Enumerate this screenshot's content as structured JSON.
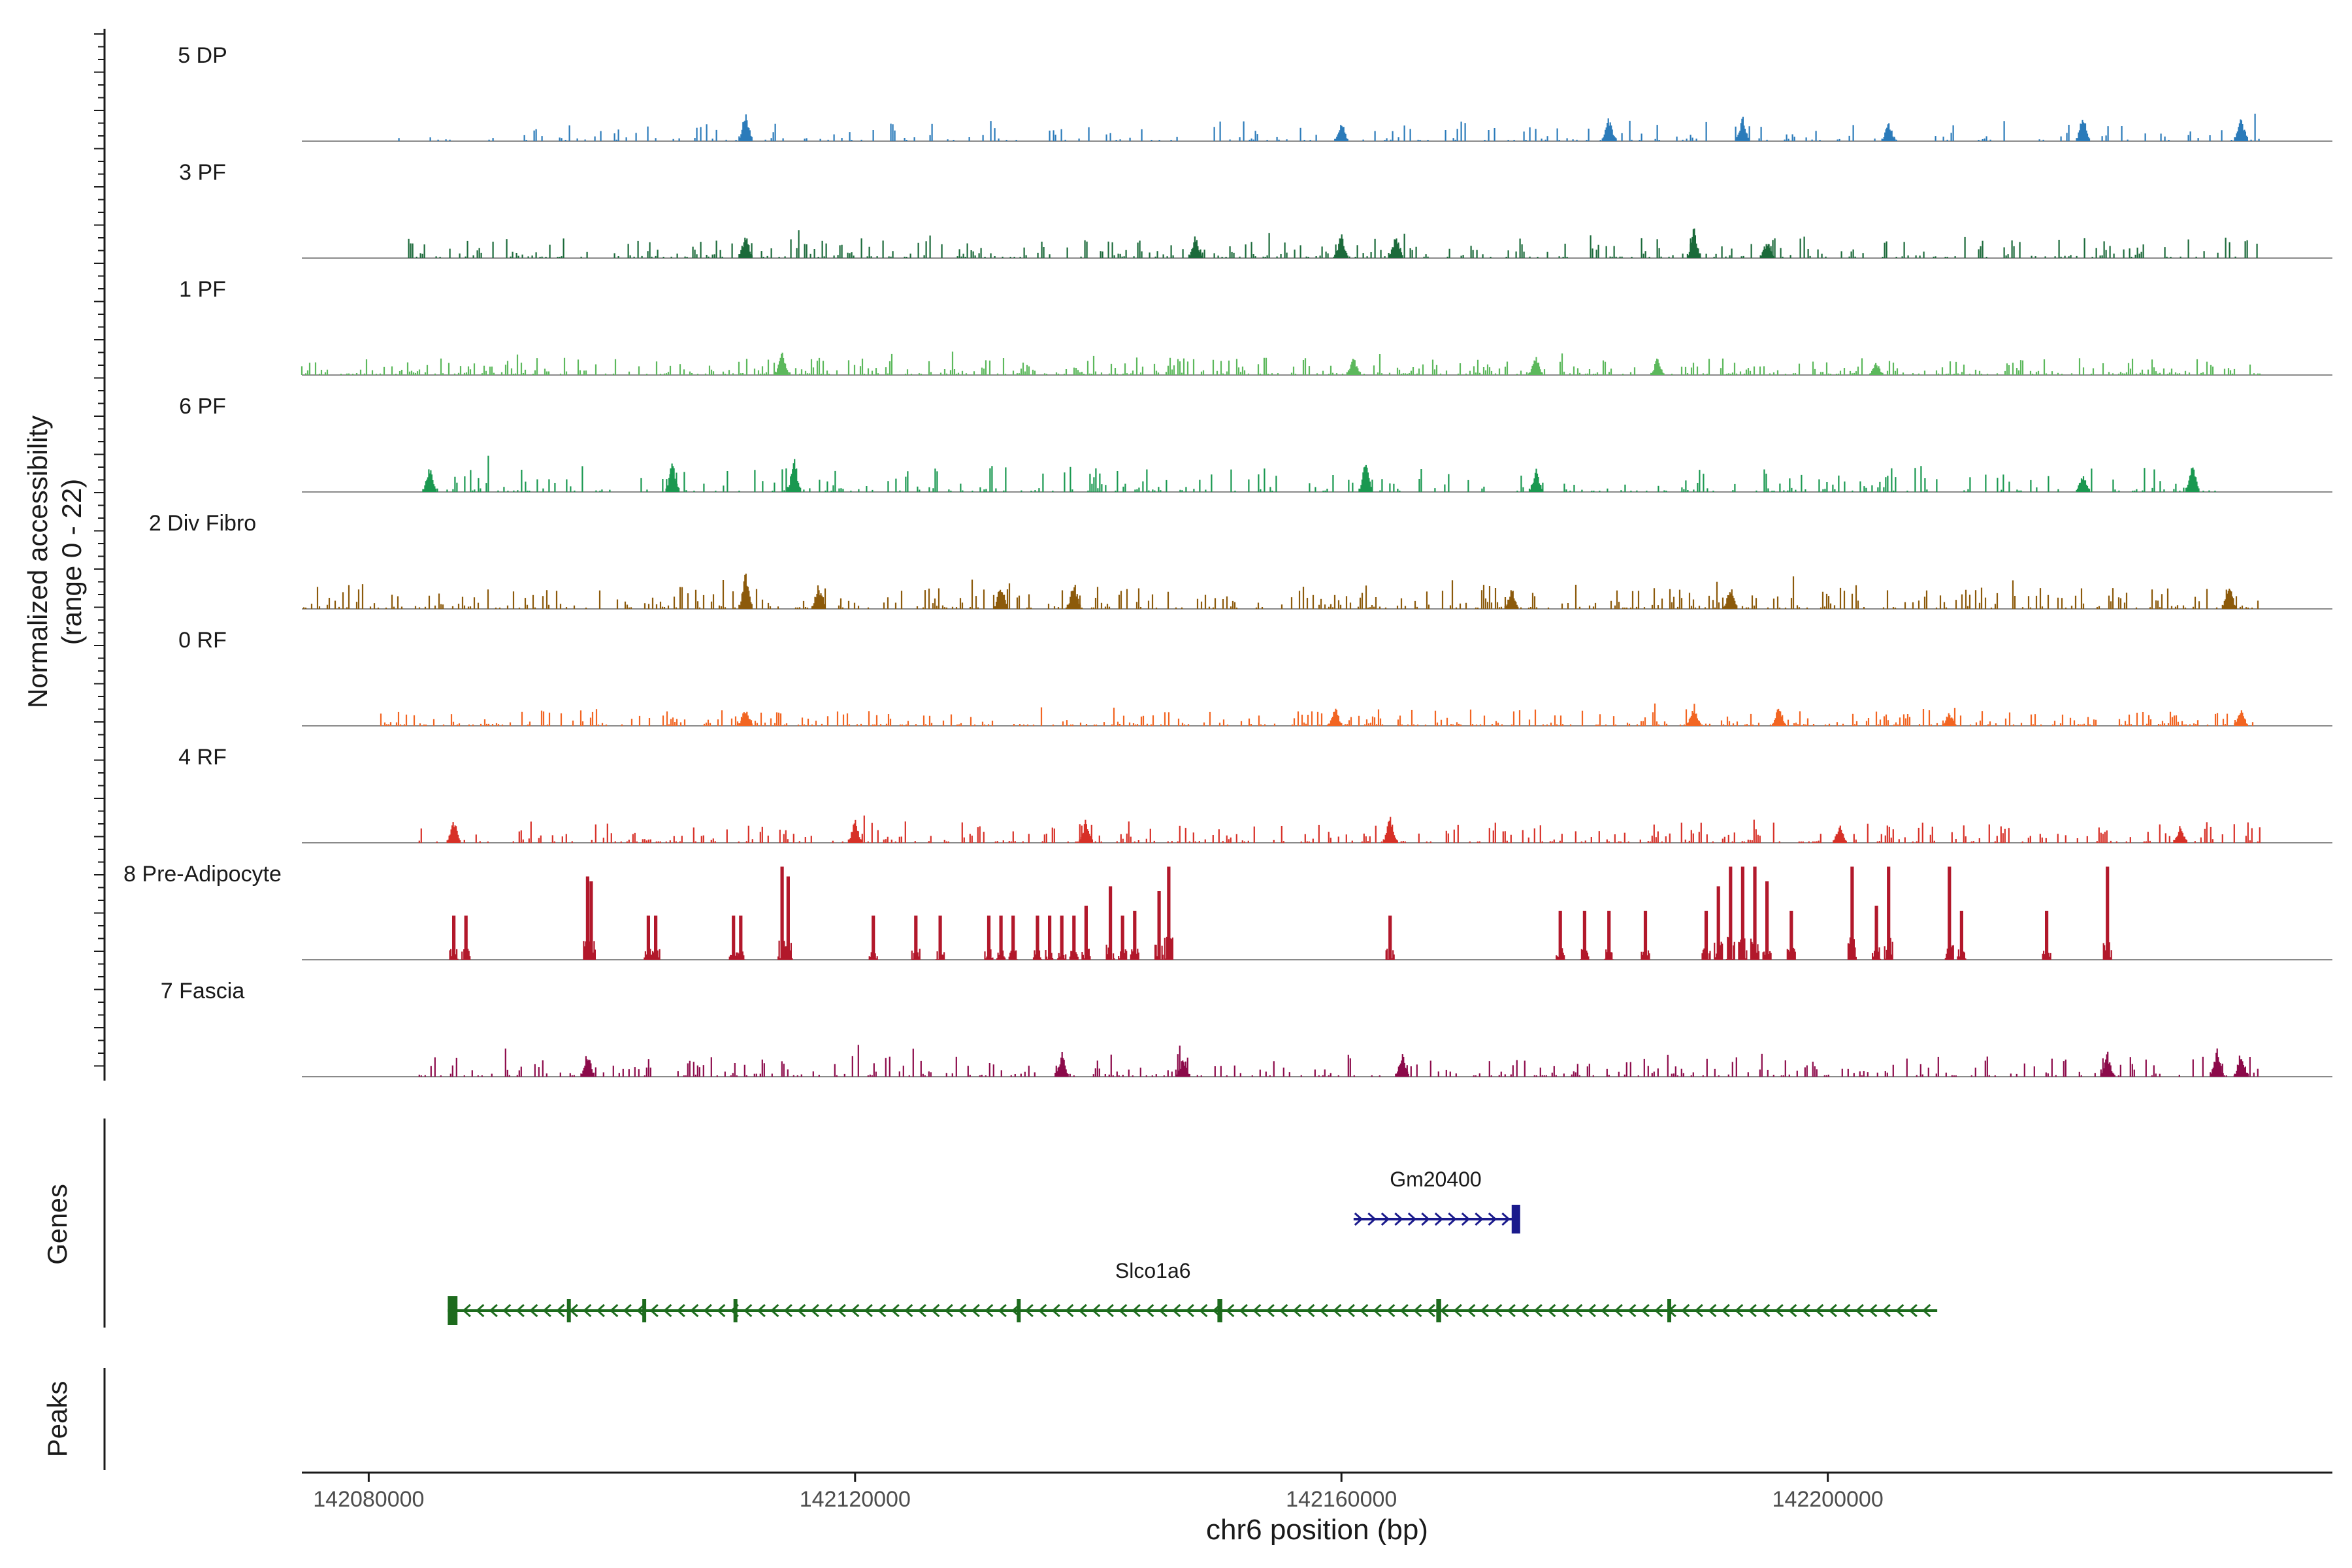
{
  "chart_data": {
    "type": "coverage",
    "y_axis_title_line1": "Normalized accessibility",
    "y_axis_title_line2": "(range 0 - 22)",
    "y_range": [
      0,
      22
    ],
    "x_title": "chr6 position (bp)",
    "x_range": [
      142074500,
      142241500
    ],
    "x_ticks": [
      {
        "value": 142080000,
        "label": "142080000"
      },
      {
        "value": 142120000,
        "label": "142120000"
      },
      {
        "value": 142160000,
        "label": "142160000"
      },
      {
        "value": 142200000,
        "label": "142200000"
      }
    ],
    "tracks": [
      {
        "name": "5 DP",
        "color": "#2b7bba",
        "height": 0.55,
        "density": 0.25,
        "start": 142082000,
        "end": 142235500,
        "peaks": [
          [
            142111000,
            1.0
          ],
          [
            142160000,
            0.7
          ],
          [
            142182000,
            0.8
          ],
          [
            142193000,
            0.85
          ],
          [
            142205000,
            0.65
          ],
          [
            142221000,
            0.9
          ],
          [
            142234000,
            0.85
          ]
        ]
      },
      {
        "name": "3 PF",
        "color": "#1b6a3a",
        "height": 0.55,
        "density": 0.4,
        "start": 142082000,
        "end": 142235500,
        "peaks": [
          [
            142111000,
            0.9
          ],
          [
            142148000,
            0.75
          ],
          [
            142160000,
            0.85
          ],
          [
            142164500,
            0.9
          ],
          [
            142189000,
            1.0
          ],
          [
            142195000,
            0.6
          ]
        ]
      },
      {
        "name": "1 PF",
        "color": "#5cb85c",
        "height": 0.45,
        "density": 0.5,
        "start": 142074500,
        "end": 142236000,
        "peaks": [
          [
            142114000,
            1.0
          ],
          [
            142161000,
            0.75
          ],
          [
            142176000,
            0.85
          ],
          [
            142186000,
            0.7
          ],
          [
            142204000,
            0.55
          ]
        ]
      },
      {
        "name": "6 PF",
        "color": "#1a9850",
        "height": 0.7,
        "density": 0.32,
        "start": 142085000,
        "end": 142232000,
        "peaks": [
          [
            142085000,
            0.7
          ],
          [
            142105000,
            0.8
          ],
          [
            142115000,
            0.9
          ],
          [
            142162000,
            0.8
          ],
          [
            142176000,
            0.6
          ],
          [
            142221000,
            0.55
          ],
          [
            142230000,
            0.8
          ]
        ]
      },
      {
        "name": "2 Div Fibro",
        "color": "#8c5a0b",
        "height": 0.65,
        "density": 0.42,
        "start": 142074500,
        "end": 142235500,
        "peaks": [
          [
            142111000,
            1.0
          ],
          [
            142117000,
            0.7
          ],
          [
            142132000,
            0.75
          ],
          [
            142138000,
            0.8
          ],
          [
            142174000,
            0.6
          ],
          [
            142192000,
            0.65
          ],
          [
            142233000,
            0.85
          ]
        ]
      },
      {
        "name": "0 RF",
        "color": "#f26522",
        "height": 0.45,
        "density": 0.4,
        "start": 142081000,
        "end": 142235500,
        "peaks": [
          [
            142111000,
            0.8
          ],
          [
            142159500,
            0.75
          ],
          [
            142189000,
            0.9
          ],
          [
            142196000,
            0.85
          ],
          [
            142210000,
            0.6
          ],
          [
            142234000,
            0.7
          ]
        ]
      },
      {
        "name": "4 RF",
        "color": "#d73027",
        "height": 0.55,
        "density": 0.38,
        "start": 142084000,
        "end": 142236000,
        "peaks": [
          [
            142087000,
            0.8
          ],
          [
            142120000,
            0.75
          ],
          [
            142139000,
            0.8
          ],
          [
            142164000,
            0.9
          ],
          [
            142201000,
            0.7
          ],
          [
            142229000,
            0.6
          ]
        ]
      },
      {
        "name": "8 Pre-Adipocyte",
        "color": "#b2182b",
        "height": 1.0,
        "density": 0.0,
        "start": 142074500,
        "end": 142241500,
        "peaks": [
          [
            142087000,
            0.45
          ],
          [
            142088000,
            0.45
          ],
          [
            142098000,
            0.85
          ],
          [
            142098300,
            0.8
          ],
          [
            142103000,
            0.45
          ],
          [
            142103600,
            0.45
          ],
          [
            142110000,
            0.45
          ],
          [
            142110600,
            0.45
          ],
          [
            142114000,
            0.95
          ],
          [
            142114500,
            0.85
          ],
          [
            142121500,
            0.45
          ],
          [
            142125000,
            0.45
          ],
          [
            142127000,
            0.45
          ],
          [
            142131000,
            0.45
          ],
          [
            142132000,
            0.45
          ],
          [
            142133000,
            0.45
          ],
          [
            142135000,
            0.45
          ],
          [
            142136000,
            0.45
          ],
          [
            142137000,
            0.45
          ],
          [
            142138000,
            0.45
          ],
          [
            142139000,
            0.55
          ],
          [
            142141000,
            0.75
          ],
          [
            142142000,
            0.45
          ],
          [
            142143000,
            0.5
          ],
          [
            142145000,
            0.7
          ],
          [
            142145800,
            0.95
          ],
          [
            142164000,
            0.45
          ],
          [
            142178000,
            0.5
          ],
          [
            142180000,
            0.5
          ],
          [
            142182000,
            0.5
          ],
          [
            142185000,
            0.5
          ],
          [
            142190000,
            0.5
          ],
          [
            142191000,
            0.75
          ],
          [
            142192000,
            0.95
          ],
          [
            142193000,
            0.95
          ],
          [
            142194000,
            0.95
          ],
          [
            142195000,
            0.8
          ],
          [
            142197000,
            0.5
          ],
          [
            142202000,
            0.95
          ],
          [
            142204000,
            0.55
          ],
          [
            142205000,
            0.95
          ],
          [
            142210000,
            0.95
          ],
          [
            142211000,
            0.5
          ],
          [
            142218000,
            0.5
          ],
          [
            142223000,
            0.95
          ]
        ]
      },
      {
        "name": "7 Fascia",
        "color": "#8c0a4a",
        "height": 0.6,
        "density": 0.33,
        "start": 142084000,
        "end": 142236500,
        "peaks": [
          [
            142098000,
            0.8
          ],
          [
            142137000,
            0.75
          ],
          [
            142147000,
            0.6
          ],
          [
            142165000,
            0.7
          ],
          [
            142223000,
            0.75
          ],
          [
            142232000,
            0.9
          ],
          [
            142234000,
            0.85
          ]
        ]
      }
    ],
    "genes": [
      {
        "name": "Gm20400",
        "strand": "+",
        "color": "#1a1a8c",
        "start": 142161000,
        "end": 142174500,
        "exons": [
          [
            142174000,
            142174700
          ]
        ]
      },
      {
        "name": "Slco1a6",
        "strand": "-",
        "color": "#1d6b1d",
        "start": 142086500,
        "end": 142209000,
        "exons": [
          [
            142086500,
            142087300
          ],
          [
            142096300,
            142096500
          ],
          [
            142102500,
            142102700
          ],
          [
            142110000,
            142110300
          ],
          [
            142133300,
            142133500
          ],
          [
            142149800,
            142150200
          ],
          [
            142167800,
            142168200
          ],
          [
            142186800,
            142187000
          ]
        ]
      }
    ],
    "side_labels": {
      "genes": "Genes",
      "peaks": "Peaks"
    }
  }
}
